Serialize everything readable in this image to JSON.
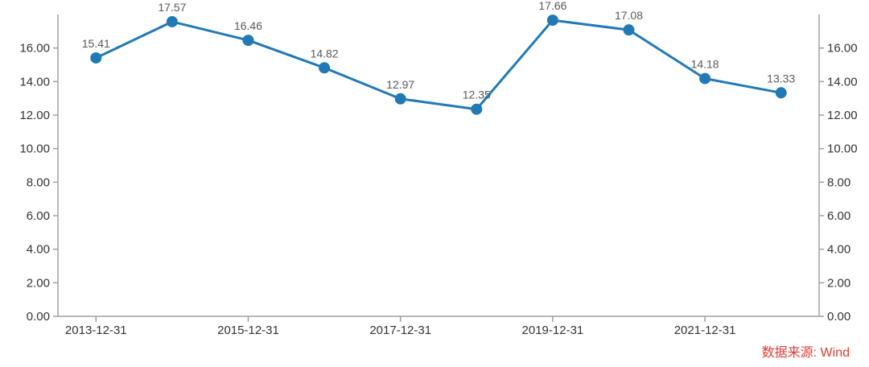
{
  "chart_data": {
    "type": "line",
    "title": "",
    "xlabel": "",
    "ylabel": "",
    "values": [
      15.41,
      17.57,
      16.46,
      14.82,
      12.97,
      12.35,
      17.66,
      17.08,
      14.18,
      13.33
    ],
    "point_labels": [
      "15.41",
      "17.57",
      "16.46",
      "14.82",
      "12.97",
      "12.35",
      "17.66",
      "17.08",
      "14.18",
      "13.33"
    ],
    "x_tick_labels": [
      "2013-12-31",
      "2015-12-31",
      "2017-12-31",
      "2019-12-31",
      "2021-12-31"
    ],
    "x_tick_point_indices": [
      0,
      2,
      4,
      6,
      8
    ],
    "y_ticks_left": [
      "0.00",
      "2.00",
      "4.00",
      "6.00",
      "8.00",
      "10.00",
      "12.00",
      "14.00",
      "16.00"
    ],
    "y_ticks_right": [
      "0.00",
      "2.00",
      "4.00",
      "6.00",
      "8.00",
      "10.00",
      "12.00",
      "14.00",
      "16.00"
    ],
    "y_axis_range": [
      0,
      18
    ],
    "dual_y_axis": true,
    "grid": false,
    "legend_position": "none",
    "line_color": "#2179b5",
    "marker_color": "#2179b5",
    "data_label_color": "#595959",
    "axis_line_color": "#a0a0a0",
    "tick_text_color": "#333333"
  },
  "footer": {
    "source_label": "数据来源: Wind",
    "color": "#e03b33"
  }
}
